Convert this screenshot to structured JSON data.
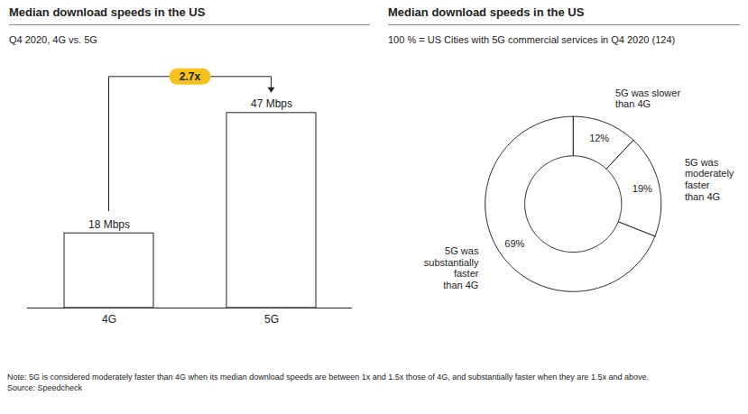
{
  "chart_data": [
    {
      "type": "bar",
      "title": "Median download speeds in the US",
      "subtitle": "Q4 2020, 4G vs. 5G",
      "categories": [
        "4G",
        "5G"
      ],
      "values": [
        18,
        47
      ],
      "value_labels": [
        "18 Mbps",
        "47 Mbps"
      ],
      "data_labels": true,
      "color": "#ffffff",
      "ylim": [
        0,
        50
      ],
      "tick_labels": "x",
      "annotations": [
        "2.7x"
      ]
    },
    {
      "type": "donut",
      "title": "Median download speeds in the US",
      "subtitle": "100 % = US Cities with 5G commercial services in Q4 2020 (124)",
      "categories": [
        "5G was slower\nthan 4G",
        "5G was\nmoderately\nfaster\nthan 4G",
        "5G was\nsubstantially\nfaster\nthan 4G"
      ],
      "values": [
        12,
        19,
        69
      ],
      "value_labels": [
        "12%",
        "19%",
        "69%"
      ],
      "data_labels": true,
      "color": "#ffffff"
    }
  ],
  "note": "Note: 5G is considered moderately faster than 4G when its median download speeds are between 1x and 1.5x those of 4G, and substantially faster when they are 1.5x and above.",
  "source": "Source: Speedcheck"
}
